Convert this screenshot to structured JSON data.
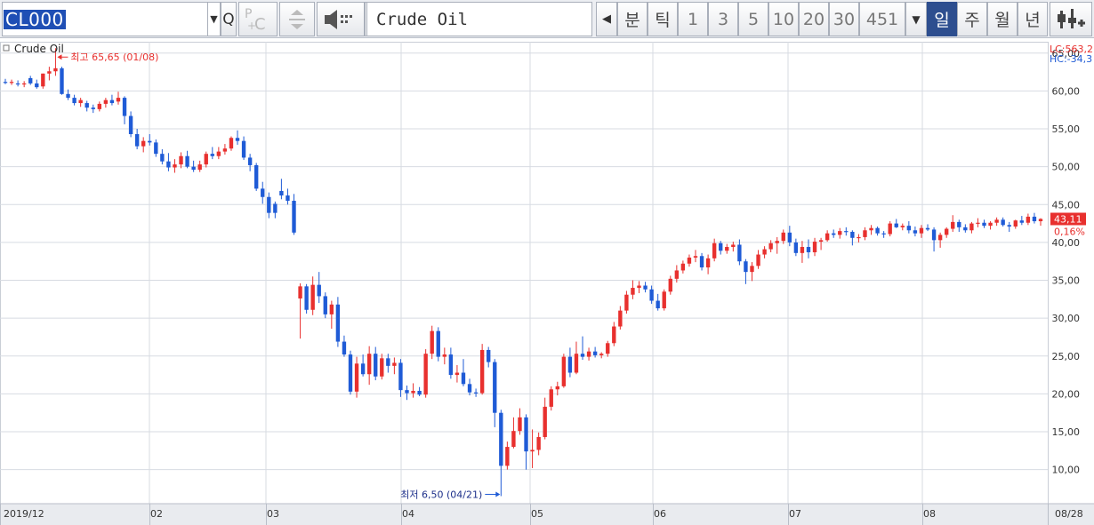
{
  "toolbar": {
    "symbol": "CL000",
    "instrument_name": "Crude Oil",
    "periods": [
      "분",
      "틱",
      "1",
      "3",
      "5",
      "10",
      "20",
      "30",
      "451"
    ],
    "chart_units": [
      "일",
      "주",
      "월",
      "년"
    ],
    "active_unit": "일"
  },
  "chart_data": {
    "type": "candlestick",
    "title": "Crude Oil",
    "ylim": [
      5.5,
      66.5
    ],
    "y_ticks": [
      10,
      15,
      20,
      25,
      30,
      35,
      40,
      45,
      50,
      55,
      60,
      65
    ],
    "y_tick_labels": [
      "10,00",
      "15,00",
      "20,00",
      "25,00",
      "30,00",
      "35,00",
      "40,00",
      "45,00",
      "50,00",
      "55,00",
      "60,00",
      "65,00"
    ],
    "x_labels": [
      "2019/12",
      "02",
      "03",
      "04",
      "05",
      "06",
      "07",
      "08",
      "08/28"
    ],
    "annotations": {
      "high": "최고 65,65 (01/08)",
      "low": "최저 6,50 (04/21)"
    },
    "right_info": {
      "lc": "LC:563,2",
      "hc": "HC:-34,3",
      "last_price": "43,11",
      "last_change": "0,16%"
    },
    "colors": {
      "up": "#e8302e",
      "down": "#1f5bd6",
      "grid": "#d7dbe2",
      "axis_text": "#333333"
    },
    "candles_note": "approximate daily OHLC read from the chart",
    "ohlc": [
      [
        61.2,
        61.6,
        60.9,
        61.1
      ],
      [
        61.1,
        61.5,
        60.8,
        61.2
      ],
      [
        61.0,
        61.4,
        60.6,
        60.9
      ],
      [
        60.9,
        61.3,
        60.5,
        61.0
      ],
      [
        61.7,
        62.0,
        60.8,
        61.0
      ],
      [
        61.0,
        61.5,
        60.3,
        60.5
      ],
      [
        60.6,
        62.3,
        60.3,
        62.3
      ],
      [
        62.3,
        63.2,
        61.4,
        62.6
      ],
      [
        62.6,
        65.65,
        62.0,
        63.0
      ],
      [
        63.0,
        63.2,
        59.5,
        59.6
      ],
      [
        59.6,
        60.2,
        58.8,
        59.1
      ],
      [
        59.1,
        59.5,
        58.1,
        58.4
      ],
      [
        58.4,
        59.1,
        57.9,
        58.8
      ],
      [
        58.4,
        58.7,
        57.3,
        57.8
      ],
      [
        57.8,
        58.2,
        57.1,
        57.6
      ],
      [
        57.6,
        58.6,
        57.3,
        58.3
      ],
      [
        58.3,
        59.1,
        57.8,
        58.8
      ],
      [
        58.8,
        59.5,
        58.1,
        58.4
      ],
      [
        58.6,
        59.9,
        58.2,
        59.1
      ],
      [
        59.1,
        59.3,
        55.6,
        56.7
      ],
      [
        56.7,
        57.3,
        53.9,
        54.3
      ],
      [
        54.3,
        55.0,
        52.3,
        52.7
      ],
      [
        52.7,
        53.9,
        51.9,
        53.4
      ],
      [
        53.4,
        54.3,
        52.8,
        53.2
      ],
      [
        53.2,
        53.6,
        51.3,
        51.7
      ],
      [
        51.7,
        52.3,
        50.3,
        50.7
      ],
      [
        50.7,
        51.8,
        49.4,
        49.9
      ],
      [
        49.9,
        51.0,
        49.2,
        50.3
      ],
      [
        50.3,
        51.9,
        49.8,
        51.4
      ],
      [
        51.4,
        52.1,
        49.8,
        50.0
      ],
      [
        50.0,
        50.8,
        49.3,
        49.6
      ],
      [
        49.6,
        50.8,
        49.3,
        50.3
      ],
      [
        50.3,
        52.0,
        49.9,
        51.7
      ],
      [
        51.7,
        52.6,
        51.0,
        51.4
      ],
      [
        51.4,
        52.6,
        51.0,
        52.0
      ],
      [
        52.0,
        53.0,
        51.6,
        52.4
      ],
      [
        52.4,
        54.0,
        52.1,
        53.8
      ],
      [
        53.8,
        54.8,
        52.9,
        53.4
      ],
      [
        53.4,
        54.0,
        50.9,
        51.2
      ],
      [
        51.2,
        51.7,
        49.4,
        50.2
      ],
      [
        50.2,
        50.5,
        46.8,
        47.1
      ],
      [
        47.1,
        48.0,
        45.1,
        46.0
      ],
      [
        46.0,
        46.6,
        43.2,
        43.9
      ],
      [
        45.1,
        45.4,
        43.2,
        43.9
      ],
      [
        46.8,
        48.4,
        45.7,
        46.2
      ],
      [
        46.2,
        47.1,
        45.0,
        45.5
      ],
      [
        45.5,
        46.4,
        41.0,
        41.3
      ],
      [
        32.6,
        34.6,
        27.3,
        34.2
      ],
      [
        34.2,
        34.5,
        30.6,
        31.1
      ],
      [
        31.1,
        35.5,
        30.4,
        34.4
      ],
      [
        34.4,
        36.1,
        32.0,
        32.9
      ],
      [
        32.9,
        33.4,
        30.0,
        30.5
      ],
      [
        30.5,
        32.3,
        28.6,
        31.8
      ],
      [
        31.8,
        32.8,
        26.2,
        26.9
      ],
      [
        26.9,
        27.7,
        24.9,
        25.2
      ],
      [
        25.2,
        25.7,
        19.9,
        20.3
      ],
      [
        20.3,
        24.9,
        19.5,
        24.0
      ],
      [
        24.0,
        25.2,
        22.3,
        22.6
      ],
      [
        22.6,
        26.3,
        21.2,
        25.3
      ],
      [
        25.3,
        26.2,
        21.8,
        22.3
      ],
      [
        22.3,
        25.3,
        21.9,
        24.7
      ],
      [
        24.7,
        25.3,
        22.8,
        23.7
      ],
      [
        23.7,
        24.8,
        22.6,
        24.1
      ],
      [
        24.1,
        24.6,
        19.6,
        20.5
      ],
      [
        20.5,
        21.1,
        19.2,
        20.1
      ],
      [
        20.1,
        21.4,
        19.5,
        20.4
      ],
      [
        20.4,
        20.9,
        19.7,
        19.9
      ],
      [
        19.9,
        25.9,
        19.5,
        25.3
      ],
      [
        25.3,
        29.0,
        24.6,
        28.3
      ],
      [
        28.3,
        28.8,
        24.3,
        24.9
      ],
      [
        24.9,
        26.1,
        23.9,
        25.2
      ],
      [
        25.2,
        26.1,
        22.0,
        22.5
      ],
      [
        22.5,
        23.8,
        21.5,
        22.8
      ],
      [
        22.8,
        24.6,
        21.0,
        21.3
      ],
      [
        21.3,
        22.0,
        19.8,
        20.2
      ],
      [
        20.2,
        20.7,
        19.6,
        20.1
      ],
      [
        20.1,
        26.6,
        19.9,
        25.8
      ],
      [
        25.8,
        26.2,
        23.5,
        24.2
      ],
      [
        24.2,
        24.6,
        15.6,
        17.5
      ],
      [
        17.5,
        17.9,
        6.5,
        10.5
      ],
      [
        10.5,
        13.7,
        10.0,
        13.0
      ],
      [
        13.0,
        16.9,
        12.8,
        15.1
      ],
      [
        15.1,
        18.1,
        14.6,
        16.9
      ],
      [
        16.9,
        17.3,
        10.0,
        12.4
      ],
      [
        12.4,
        15.3,
        10.2,
        12.6
      ],
      [
        12.6,
        14.9,
        11.9,
        14.3
      ],
      [
        14.3,
        19.5,
        14.0,
        18.3
      ],
      [
        18.3,
        21.0,
        17.8,
        20.6
      ],
      [
        20.6,
        21.6,
        19.8,
        21.0
      ],
      [
        21.0,
        25.3,
        20.8,
        24.9
      ],
      [
        24.9,
        26.1,
        22.2,
        22.8
      ],
      [
        22.8,
        26.9,
        22.6,
        25.3
      ],
      [
        25.3,
        27.6,
        24.5,
        24.9
      ],
      [
        24.9,
        26.1,
        24.4,
        25.6
      ],
      [
        25.6,
        26.2,
        24.8,
        25.1
      ],
      [
        25.1,
        25.5,
        24.7,
        25.3
      ],
      [
        25.3,
        27.0,
        24.9,
        26.7
      ],
      [
        26.7,
        29.5,
        26.3,
        28.9
      ],
      [
        28.9,
        31.6,
        28.5,
        31.0
      ],
      [
        31.0,
        33.6,
        30.6,
        33.1
      ],
      [
        33.1,
        35.0,
        32.5,
        34.0
      ],
      [
        34.0,
        34.9,
        33.3,
        34.3
      ],
      [
        34.3,
        34.8,
        33.4,
        33.8
      ],
      [
        33.8,
        34.3,
        31.9,
        32.3
      ],
      [
        32.3,
        33.2,
        31.0,
        31.3
      ],
      [
        31.3,
        33.8,
        31.0,
        33.5
      ],
      [
        33.5,
        35.6,
        33.1,
        35.2
      ],
      [
        35.2,
        37.0,
        34.7,
        36.3
      ],
      [
        36.3,
        37.6,
        35.9,
        37.2
      ],
      [
        37.2,
        38.4,
        36.8,
        38.0
      ],
      [
        38.0,
        39.0,
        37.4,
        38.2
      ],
      [
        38.2,
        38.6,
        36.3,
        36.7
      ],
      [
        36.7,
        38.4,
        35.8,
        37.9
      ],
      [
        37.9,
        40.5,
        37.5,
        39.9
      ],
      [
        39.9,
        40.2,
        38.4,
        38.9
      ],
      [
        38.9,
        39.8,
        38.5,
        39.4
      ],
      [
        39.4,
        40.1,
        38.8,
        39.7
      ],
      [
        39.7,
        40.4,
        37.0,
        37.5
      ],
      [
        37.5,
        37.8,
        34.5,
        36.1
      ],
      [
        36.1,
        37.4,
        34.9,
        36.9
      ],
      [
        36.9,
        39.0,
        36.5,
        38.4
      ],
      [
        38.4,
        39.5,
        37.9,
        39.1
      ],
      [
        39.1,
        40.3,
        38.7,
        39.9
      ],
      [
        39.9,
        40.7,
        38.5,
        40.2
      ],
      [
        40.2,
        41.7,
        39.8,
        41.3
      ],
      [
        41.3,
        42.2,
        39.5,
        40.0
      ],
      [
        40.0,
        40.5,
        38.2,
        38.6
      ],
      [
        38.6,
        40.2,
        37.3,
        39.4
      ],
      [
        39.4,
        40.4,
        37.9,
        38.7
      ],
      [
        38.7,
        40.6,
        38.2,
        40.1
      ],
      [
        40.1,
        40.6,
        39.0,
        40.3
      ],
      [
        40.3,
        41.6,
        40.1,
        41.2
      ],
      [
        41.2,
        41.7,
        40.6,
        41.0
      ],
      [
        41.0,
        41.9,
        40.5,
        41.5
      ],
      [
        41.5,
        42.0,
        40.9,
        41.4
      ],
      [
        41.4,
        41.6,
        39.6,
        40.6
      ],
      [
        40.6,
        41.1,
        40.0,
        40.7
      ],
      [
        40.7,
        42.0,
        40.3,
        41.6
      ],
      [
        41.6,
        42.3,
        41.0,
        41.9
      ],
      [
        41.9,
        42.1,
        40.9,
        41.2
      ],
      [
        41.2,
        41.5,
        40.6,
        41.1
      ],
      [
        41.1,
        42.8,
        40.8,
        42.5
      ],
      [
        42.5,
        43.1,
        41.9,
        42.0
      ],
      [
        42.0,
        42.5,
        41.6,
        42.2
      ],
      [
        42.2,
        42.8,
        41.2,
        41.6
      ],
      [
        41.6,
        42.1,
        40.8,
        41.2
      ],
      [
        41.2,
        42.3,
        40.6,
        41.9
      ],
      [
        41.9,
        42.4,
        41.5,
        41.7
      ],
      [
        41.7,
        42.0,
        38.8,
        40.3
      ],
      [
        40.3,
        41.3,
        39.3,
        41.0
      ],
      [
        41.0,
        42.0,
        40.6,
        41.8
      ],
      [
        41.8,
        43.6,
        41.4,
        42.7
      ],
      [
        42.7,
        43.0,
        41.4,
        42.0
      ],
      [
        42.0,
        42.4,
        41.3,
        41.6
      ],
      [
        41.6,
        42.7,
        41.2,
        42.5
      ],
      [
        42.5,
        43.2,
        42.0,
        42.6
      ],
      [
        42.6,
        43.0,
        41.9,
        42.2
      ],
      [
        42.2,
        42.8,
        41.7,
        42.6
      ],
      [
        42.6,
        43.3,
        42.2,
        43.0
      ],
      [
        43.0,
        43.3,
        42.1,
        42.3
      ],
      [
        42.3,
        42.7,
        41.4,
        42.1
      ],
      [
        42.1,
        43.0,
        41.8,
        42.9
      ],
      [
        42.9,
        43.5,
        42.3,
        42.6
      ],
      [
        42.6,
        43.8,
        42.3,
        43.4
      ],
      [
        43.4,
        43.9,
        42.5,
        42.8
      ],
      [
        42.8,
        43.2,
        42.2,
        43.1
      ]
    ]
  }
}
